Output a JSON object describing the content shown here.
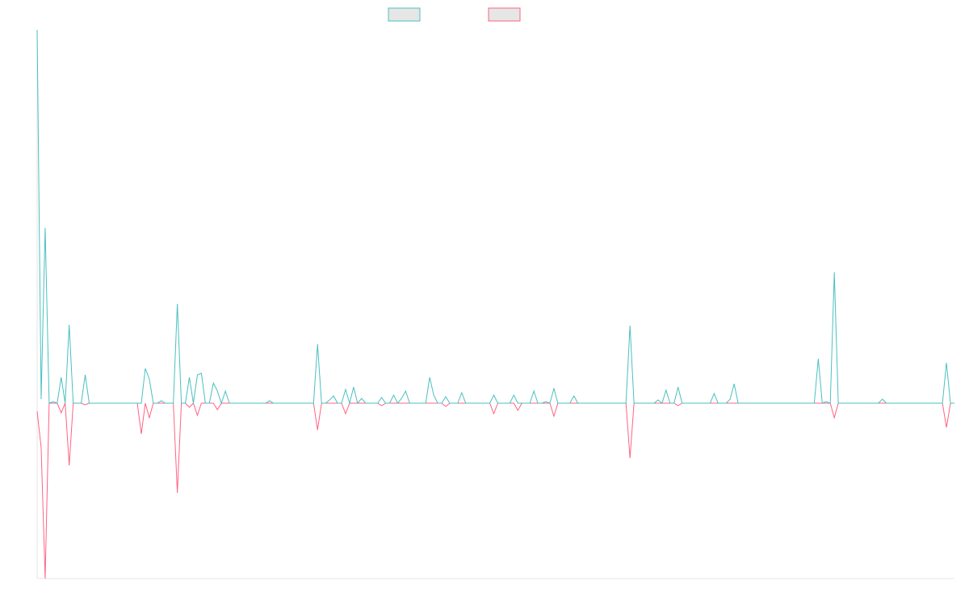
{
  "chart_data": {
    "type": "line",
    "categories": [
      null,
      null,
      null,
      null,
      null,
      null,
      null,
      null,
      null,
      null,
      null,
      null,
      null,
      null,
      null,
      null,
      null,
      null,
      null,
      null,
      null,
      null,
      null,
      null,
      null,
      null,
      null,
      null,
      null,
      null,
      null,
      null,
      null,
      null,
      null,
      null,
      null,
      null,
      null,
      null,
      null,
      null,
      null,
      null,
      null,
      null,
      null,
      null,
      null,
      null,
      null,
      null,
      null,
      null,
      null,
      null,
      null,
      null,
      null,
      null,
      null,
      null,
      null,
      null,
      null,
      null,
      null,
      null,
      null,
      null,
      null,
      null,
      null,
      null,
      null,
      null,
      null,
      null,
      null,
      null,
      null,
      null,
      null,
      null,
      null,
      null,
      null,
      null,
      null,
      null,
      null,
      null,
      null,
      null,
      null,
      null,
      null,
      null,
      null,
      null,
      null,
      null,
      null,
      null,
      null,
      null,
      null,
      null,
      null,
      null,
      null,
      null,
      null,
      null,
      null,
      null,
      null,
      null,
      null,
      null,
      null,
      null,
      null,
      null,
      null,
      null,
      null,
      null,
      null,
      null,
      null,
      null,
      null,
      null,
      null,
      null,
      null,
      null,
      null,
      null,
      null,
      null,
      null,
      null,
      null,
      null,
      null,
      null,
      null,
      null,
      null,
      null,
      null,
      null,
      null,
      null,
      null,
      null,
      null,
      null,
      null,
      null,
      null,
      null,
      null,
      null,
      null,
      null,
      null,
      null,
      null,
      null,
      null,
      null,
      null,
      null,
      null,
      null,
      null,
      null,
      null,
      null,
      null,
      null,
      null,
      null,
      null,
      null,
      null,
      null,
      null,
      null,
      null,
      null,
      null,
      null,
      null,
      null,
      null,
      null,
      null,
      null,
      null,
      null,
      null,
      null,
      null,
      null,
      null,
      null,
      null,
      null,
      null,
      null,
      null,
      null,
      null,
      null,
      null,
      null,
      null,
      null,
      null,
      null,
      null,
      null,
      null,
      null,
      null,
      null
    ],
    "series": [
      {
        "color": "#4bc0c0",
        "values": [
          462,
          5,
          217,
          0,
          2,
          0,
          32,
          0,
          97,
          0,
          0,
          0,
          35,
          0,
          0,
          0,
          0,
          0,
          0,
          0,
          0,
          0,
          0,
          0,
          0,
          0,
          0,
          43,
          30,
          0,
          0,
          3,
          0,
          0,
          0,
          123,
          0,
          0,
          32,
          0,
          35,
          37,
          0,
          0,
          25,
          15,
          0,
          15,
          0,
          0,
          0,
          0,
          0,
          0,
          0,
          0,
          0,
          0,
          3,
          0,
          0,
          0,
          0,
          0,
          0,
          0,
          0,
          0,
          0,
          0,
          73,
          0,
          0,
          4,
          9,
          0,
          0,
          17,
          0,
          20,
          0,
          6,
          0,
          0,
          0,
          0,
          7,
          0,
          0,
          10,
          0,
          6,
          15,
          0,
          0,
          0,
          0,
          0,
          32,
          10,
          0,
          0,
          8,
          0,
          0,
          0,
          13,
          0,
          0,
          0,
          0,
          0,
          0,
          0,
          10,
          0,
          0,
          0,
          0,
          10,
          0,
          0,
          0,
          0,
          15,
          0,
          0,
          2,
          0,
          18,
          0,
          0,
          0,
          0,
          9,
          0,
          0,
          0,
          0,
          0,
          0,
          0,
          0,
          0,
          0,
          0,
          0,
          0,
          96,
          0,
          0,
          0,
          0,
          0,
          0,
          4,
          0,
          16,
          0,
          0,
          20,
          0,
          0,
          0,
          0,
          0,
          0,
          0,
          0,
          12,
          0,
          0,
          0,
          5,
          24,
          0,
          0,
          0,
          0,
          0,
          0,
          0,
          0,
          0,
          0,
          0,
          0,
          0,
          0,
          0,
          0,
          0,
          0,
          0,
          0,
          55,
          0,
          2,
          0,
          162,
          0,
          0,
          0,
          0,
          0,
          0,
          0,
          0,
          0,
          0,
          0,
          5,
          0,
          0,
          0,
          0,
          0,
          0,
          0,
          0,
          0,
          0,
          0,
          0,
          0,
          0,
          0,
          50,
          0,
          0
        ]
      },
      {
        "color": "#ff6384",
        "values": [
          -10,
          -55,
          -217,
          0,
          0,
          0,
          -12,
          0,
          -77,
          0,
          0,
          0,
          -2,
          0,
          0,
          0,
          0,
          0,
          0,
          0,
          0,
          0,
          0,
          0,
          0,
          0,
          -38,
          0,
          -18,
          0,
          0,
          0,
          0,
          0,
          0,
          -111,
          0,
          0,
          -5,
          0,
          -15,
          0,
          0,
          0,
          0,
          -8,
          0,
          0,
          0,
          0,
          0,
          0,
          0,
          0,
          0,
          0,
          0,
          0,
          0,
          0,
          0,
          0,
          0,
          0,
          0,
          0,
          0,
          0,
          0,
          0,
          -33,
          0,
          0,
          0,
          0,
          0,
          0,
          -13,
          0,
          0,
          0,
          0,
          0,
          0,
          0,
          0,
          -3,
          0,
          0,
          0,
          0,
          0,
          0,
          0,
          0,
          0,
          0,
          0,
          0,
          0,
          0,
          0,
          -4,
          0,
          0,
          0,
          0,
          0,
          0,
          0,
          0,
          0,
          0,
          0,
          -13,
          0,
          0,
          0,
          0,
          0,
          -9,
          0,
          0,
          0,
          0,
          0,
          0,
          0,
          0,
          -16,
          0,
          0,
          0,
          0,
          0,
          0,
          0,
          0,
          0,
          0,
          0,
          0,
          0,
          0,
          0,
          0,
          0,
          0,
          -68,
          0,
          0,
          0,
          0,
          0,
          0,
          0,
          0,
          0,
          0,
          0,
          -3,
          0,
          0,
          0,
          0,
          0,
          0,
          0,
          0,
          0,
          0,
          0,
          0,
          0,
          0,
          0,
          0,
          0,
          0,
          0,
          0,
          0,
          0,
          0,
          0,
          0,
          0,
          0,
          0,
          0,
          0,
          0,
          0,
          0,
          0,
          0,
          0,
          0,
          0,
          -18,
          0,
          0,
          0,
          0,
          0,
          0,
          0,
          0,
          0,
          0,
          0,
          0,
          0,
          0,
          0,
          0,
          0,
          0,
          0,
          0,
          0,
          0,
          0,
          0,
          0,
          0,
          0,
          -30,
          0,
          0
        ]
      }
    ],
    "ylim": [
      -217,
      462
    ]
  }
}
